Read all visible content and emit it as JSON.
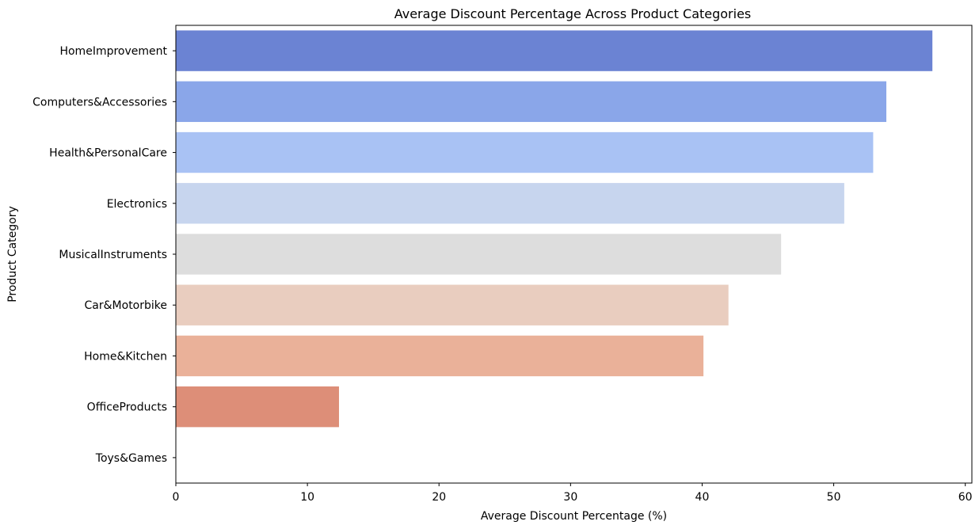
{
  "chart_data": {
    "type": "bar",
    "orientation": "horizontal",
    "title": "Average Discount Percentage Across Product Categories",
    "xlabel": "Average Discount Percentage (%)",
    "ylabel": "Product Category",
    "categories": [
      "HomeImprovement",
      "Computers&Accessories",
      "Health&PersonalCare",
      "Electronics",
      "MusicalInstruments",
      "Car&Motorbike",
      "Home&Kitchen",
      "OfficeProducts",
      "Toys&Games"
    ],
    "values": [
      57.5,
      54.0,
      53.0,
      50.8,
      46.0,
      42.0,
      40.1,
      12.4,
      0.0
    ],
    "colors": [
      "#6b83d3",
      "#8aa6e9",
      "#a9c2f4",
      "#c7d5ee",
      "#dddddd",
      "#e9cdbf",
      "#eab199",
      "#dd8e78",
      "#cf6c5a"
    ],
    "xlim": [
      0,
      60.5
    ],
    "xticks": [
      0,
      10,
      20,
      30,
      40,
      50,
      60
    ],
    "grid": false,
    "legend": "none"
  }
}
